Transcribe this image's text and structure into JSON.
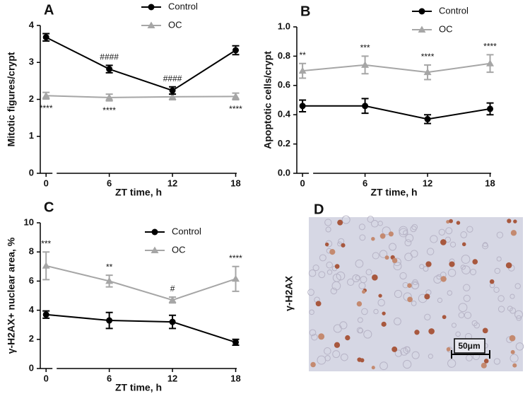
{
  "chart_data": [
    {
      "type": "line",
      "panel_label": "A",
      "x_label": "ZT time, h",
      "y_label": "Mitotic figures/crypt",
      "x": [
        0,
        6,
        12,
        18
      ],
      "xlim": [
        -0.55,
        18.1
      ],
      "xticks": [
        0,
        6,
        12,
        18
      ],
      "ylim": [
        0,
        4
      ],
      "yticks": [
        0,
        1,
        2,
        3,
        4
      ],
      "legend": "upper center",
      "series": [
        {
          "name": "Control",
          "color": "#000000",
          "marker": "circle",
          "values": [
            3.68,
            2.82,
            2.24,
            3.33
          ],
          "errors": [
            0.1,
            0.1,
            0.1,
            0.12
          ]
        },
        {
          "name": "OC",
          "color": "#a6a6a6",
          "marker": "triangle",
          "values": [
            2.1,
            2.05,
            2.07,
            2.08
          ],
          "errors": [
            0.09,
            0.09,
            0.08,
            0.09
          ]
        }
      ],
      "annotations": [
        {
          "text": "####",
          "x": 6,
          "series": 0,
          "side": "above"
        },
        {
          "text": "####",
          "x": 12,
          "series": 0,
          "side": "above"
        },
        {
          "text": "****",
          "x": 0,
          "series": 1,
          "side": "below"
        },
        {
          "text": "****",
          "x": 6,
          "series": 1,
          "side": "below"
        },
        {
          "text": "****",
          "x": 18,
          "series": 1,
          "side": "below"
        }
      ]
    },
    {
      "type": "line",
      "panel_label": "B",
      "x_label": "ZT time, h",
      "y_label": "Apoptotic cells/crypt",
      "x": [
        0,
        6,
        12,
        18
      ],
      "xlim": [
        -0.55,
        18.1
      ],
      "xticks": [
        0,
        6,
        12,
        18
      ],
      "ylim": [
        0,
        1
      ],
      "yticks": [
        {
          "value": 0,
          "label": "0.0"
        },
        0.2,
        0.4,
        0.6,
        0.8,
        {
          "value": 1,
          "label": "1.0"
        }
      ],
      "legend": "upper right",
      "series": [
        {
          "name": "Control",
          "color": "#000000",
          "marker": "circle",
          "values": [
            0.46,
            0.46,
            0.37,
            0.44
          ],
          "errors": [
            0.04,
            0.05,
            0.03,
            0.04
          ]
        },
        {
          "name": "OC",
          "color": "#a6a6a6",
          "marker": "triangle",
          "values": [
            0.7,
            0.74,
            0.69,
            0.75
          ],
          "errors": [
            0.05,
            0.06,
            0.05,
            0.06
          ]
        }
      ],
      "annotations": [
        {
          "text": "**",
          "x": 0,
          "series": 1,
          "side": "above"
        },
        {
          "text": "***",
          "x": 6,
          "series": 1,
          "side": "above"
        },
        {
          "text": "****",
          "x": 12,
          "series": 1,
          "side": "above"
        },
        {
          "text": "****",
          "x": 18,
          "series": 1,
          "side": "above"
        }
      ]
    },
    {
      "type": "line",
      "panel_label": "C",
      "x_label": "ZT time, h",
      "y_label": "γ-H2AX+ nuclear area, %",
      "x": [
        0,
        6,
        12,
        18
      ],
      "xlim": [
        -0.55,
        18.1
      ],
      "xticks": [
        0,
        6,
        12,
        18
      ],
      "ylim": [
        0,
        10
      ],
      "yticks": [
        0,
        2,
        4,
        6,
        8,
        10
      ],
      "legend": "center right",
      "series": [
        {
          "name": "Control",
          "color": "#000000",
          "marker": "circle",
          "values": [
            3.7,
            3.3,
            3.2,
            1.8
          ],
          "errors": [
            0.25,
            0.55,
            0.45,
            0.2
          ]
        },
        {
          "name": "OC",
          "color": "#a6a6a6",
          "marker": "triangle",
          "values": [
            7.05,
            6.0,
            4.7,
            6.15
          ],
          "errors": [
            0.95,
            0.4,
            0.2,
            0.85
          ]
        }
      ],
      "annotations": [
        {
          "text": "***",
          "x": 0,
          "series": 1,
          "side": "above"
        },
        {
          "text": "**",
          "x": 6,
          "series": 1,
          "side": "above"
        },
        {
          "text": "#",
          "x": 12,
          "series": 1,
          "side": "above"
        },
        {
          "text": "****",
          "x": 18,
          "series": 1,
          "side": "above"
        }
      ]
    }
  ],
  "panel_d": {
    "label": "D",
    "side_label": "γ-H2AX",
    "scale_bar": "50μm"
  }
}
